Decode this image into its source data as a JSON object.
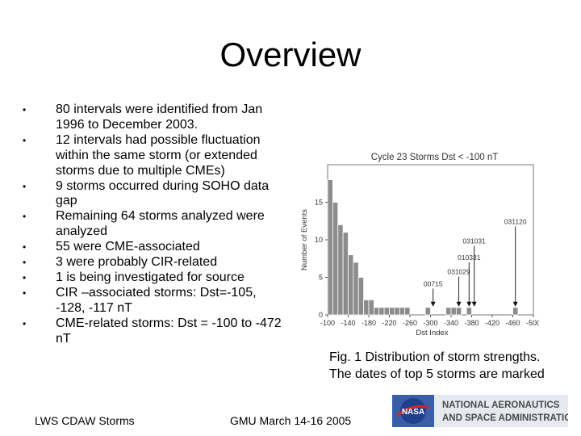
{
  "slide": {
    "title": "Overview",
    "bullets": [
      "80 intervals were identified from Jan 1996 to December 2003.",
      "12 intervals had possible fluctuation within the same storm (or extended storms due to multiple CMEs)",
      "9 storms occurred during SOHO data gap",
      "Remaining 64 storms analyzed were analyzed",
      "55 were CME-associated",
      "3 were probably CIR-related",
      "1 is being investigated for source",
      "CIR –associated storms: Dst=-105, -128, -117 nT",
      "CME-related storms: Dst = -100 to -472 nT"
    ],
    "caption_line1": "Fig. 1 Distribution of storm strengths.",
    "caption_line2": "The dates of top 5 storms are marked",
    "footer_left": "LWS CDAW Storms",
    "footer_center": "GMU March 14-16 2005",
    "logo": {
      "line1": "NATIONAL AERONAUTICS",
      "line2": "AND SPACE ADMINISTRATION",
      "emblem": "NASA",
      "bar_color": "#3a5fa8"
    }
  },
  "chart_data": {
    "type": "bar",
    "title": "Cycle 23 Storms Dst < -100 nT",
    "xlabel": "Dst Index",
    "ylabel": "Number of Events",
    "ylim": [
      0,
      20
    ],
    "yticks": [
      0,
      5,
      10,
      15
    ],
    "xlim": [
      -100,
      -500
    ],
    "xticks": [
      "-100",
      "-140",
      "-180",
      "-220",
      "-260",
      "-300",
      "-340",
      "-380",
      "-420",
      "-460",
      "-500"
    ],
    "bin_width": 10,
    "bins": [
      {
        "x": -100,
        "value": 18
      },
      {
        "x": -110,
        "value": 15
      },
      {
        "x": -120,
        "value": 12
      },
      {
        "x": -130,
        "value": 11
      },
      {
        "x": -140,
        "value": 8
      },
      {
        "x": -150,
        "value": 7
      },
      {
        "x": -160,
        "value": 5
      },
      {
        "x": -170,
        "value": 2
      },
      {
        "x": -180,
        "value": 2
      },
      {
        "x": -190,
        "value": 1
      },
      {
        "x": -200,
        "value": 1
      },
      {
        "x": -210,
        "value": 1
      },
      {
        "x": -220,
        "value": 1
      },
      {
        "x": -230,
        "value": 1
      },
      {
        "x": -240,
        "value": 1
      },
      {
        "x": -250,
        "value": 1
      },
      {
        "x": -290,
        "value": 1
      },
      {
        "x": -330,
        "value": 1
      },
      {
        "x": -340,
        "value": 1
      },
      {
        "x": -350,
        "value": 1
      },
      {
        "x": -370,
        "value": 1
      },
      {
        "x": -460,
        "value": 1
      }
    ],
    "annotations": [
      {
        "label": "00715",
        "x": -300,
        "label_y": 3.6
      },
      {
        "label": "031029",
        "x": -350,
        "label_y": 5.2
      },
      {
        "label": "010331",
        "x": -370,
        "label_y": 7.1
      },
      {
        "label": "031031",
        "x": -380,
        "label_y": 9.3
      },
      {
        "label": "031120",
        "x": -460,
        "label_y": 11.9
      }
    ],
    "grid": false,
    "bar_color": "#8c8c8c"
  }
}
